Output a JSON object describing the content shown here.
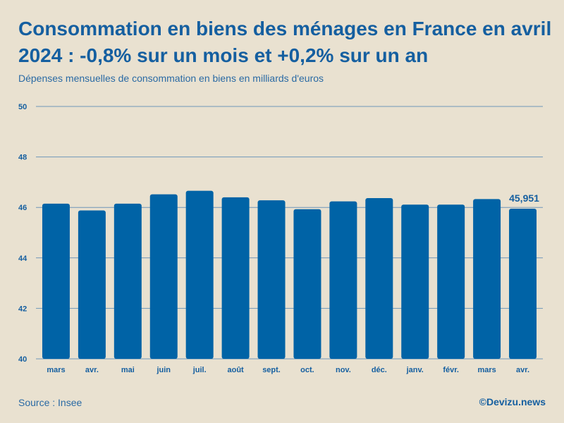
{
  "title": "Consommation en biens des ménages en France en avril 2024 : -0,8% sur un mois et +0,2% sur un an",
  "subtitle": "Dépenses mensuelles de consommation en biens en milliards d'euros",
  "source": "Source : Insee",
  "brand": "©Devizu.news",
  "colors": {
    "bar": "#0063a6",
    "grid": "#6f96b8",
    "text": "#155fa0",
    "background": "#e9e1d0"
  },
  "chart_data": {
    "type": "bar",
    "categories": [
      "mars",
      "avr.",
      "mai",
      "juin",
      "juil.",
      "août",
      "sept.",
      "oct.",
      "nov.",
      "déc.",
      "janv.",
      "févr.",
      "mars",
      "avr."
    ],
    "values": [
      46.15,
      45.88,
      46.15,
      46.52,
      46.66,
      46.4,
      46.28,
      45.93,
      46.24,
      46.37,
      46.11,
      46.11,
      46.33,
      45.951
    ],
    "ylim": [
      40,
      50
    ],
    "yticks": [
      40,
      42,
      44,
      46,
      48,
      50
    ],
    "annotations": [
      {
        "index": 13,
        "label": "45,951"
      }
    ],
    "xlabel": "",
    "ylabel": ""
  }
}
